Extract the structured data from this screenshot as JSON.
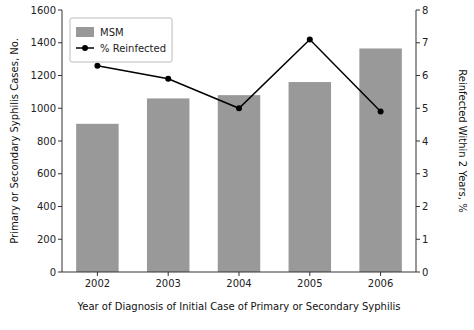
{
  "chart_data": {
    "type": "bar",
    "xlabel": "Year of Diagnosis of Initial Case of Primary or Secondary Syphilis",
    "ylabel": "Primary or Secondary Syphilis Cases, No.",
    "y2label": "Reinfected Within 2 Years, %",
    "categories": [
      "2002",
      "2003",
      "2004",
      "2005",
      "2006"
    ],
    "series": [
      {
        "name": "MSM",
        "type": "bar",
        "color": "#999999",
        "values": [
          905,
          1060,
          1080,
          1160,
          1365
        ]
      },
      {
        "name": "% Reinfected",
        "type": "line",
        "axis": "y2",
        "color": "#000000",
        "marker": "circle",
        "values": [
          6.3,
          5.9,
          5.0,
          7.1,
          4.9
        ]
      }
    ],
    "ylim": [
      0,
      1600
    ],
    "yticks": [
      0,
      200,
      400,
      600,
      800,
      1000,
      1200,
      1400,
      1600
    ],
    "y2lim": [
      0,
      8
    ],
    "y2ticks": [
      0,
      1,
      2,
      3,
      4,
      5,
      6,
      7,
      8
    ],
    "grid": false,
    "legend": "upper left"
  }
}
